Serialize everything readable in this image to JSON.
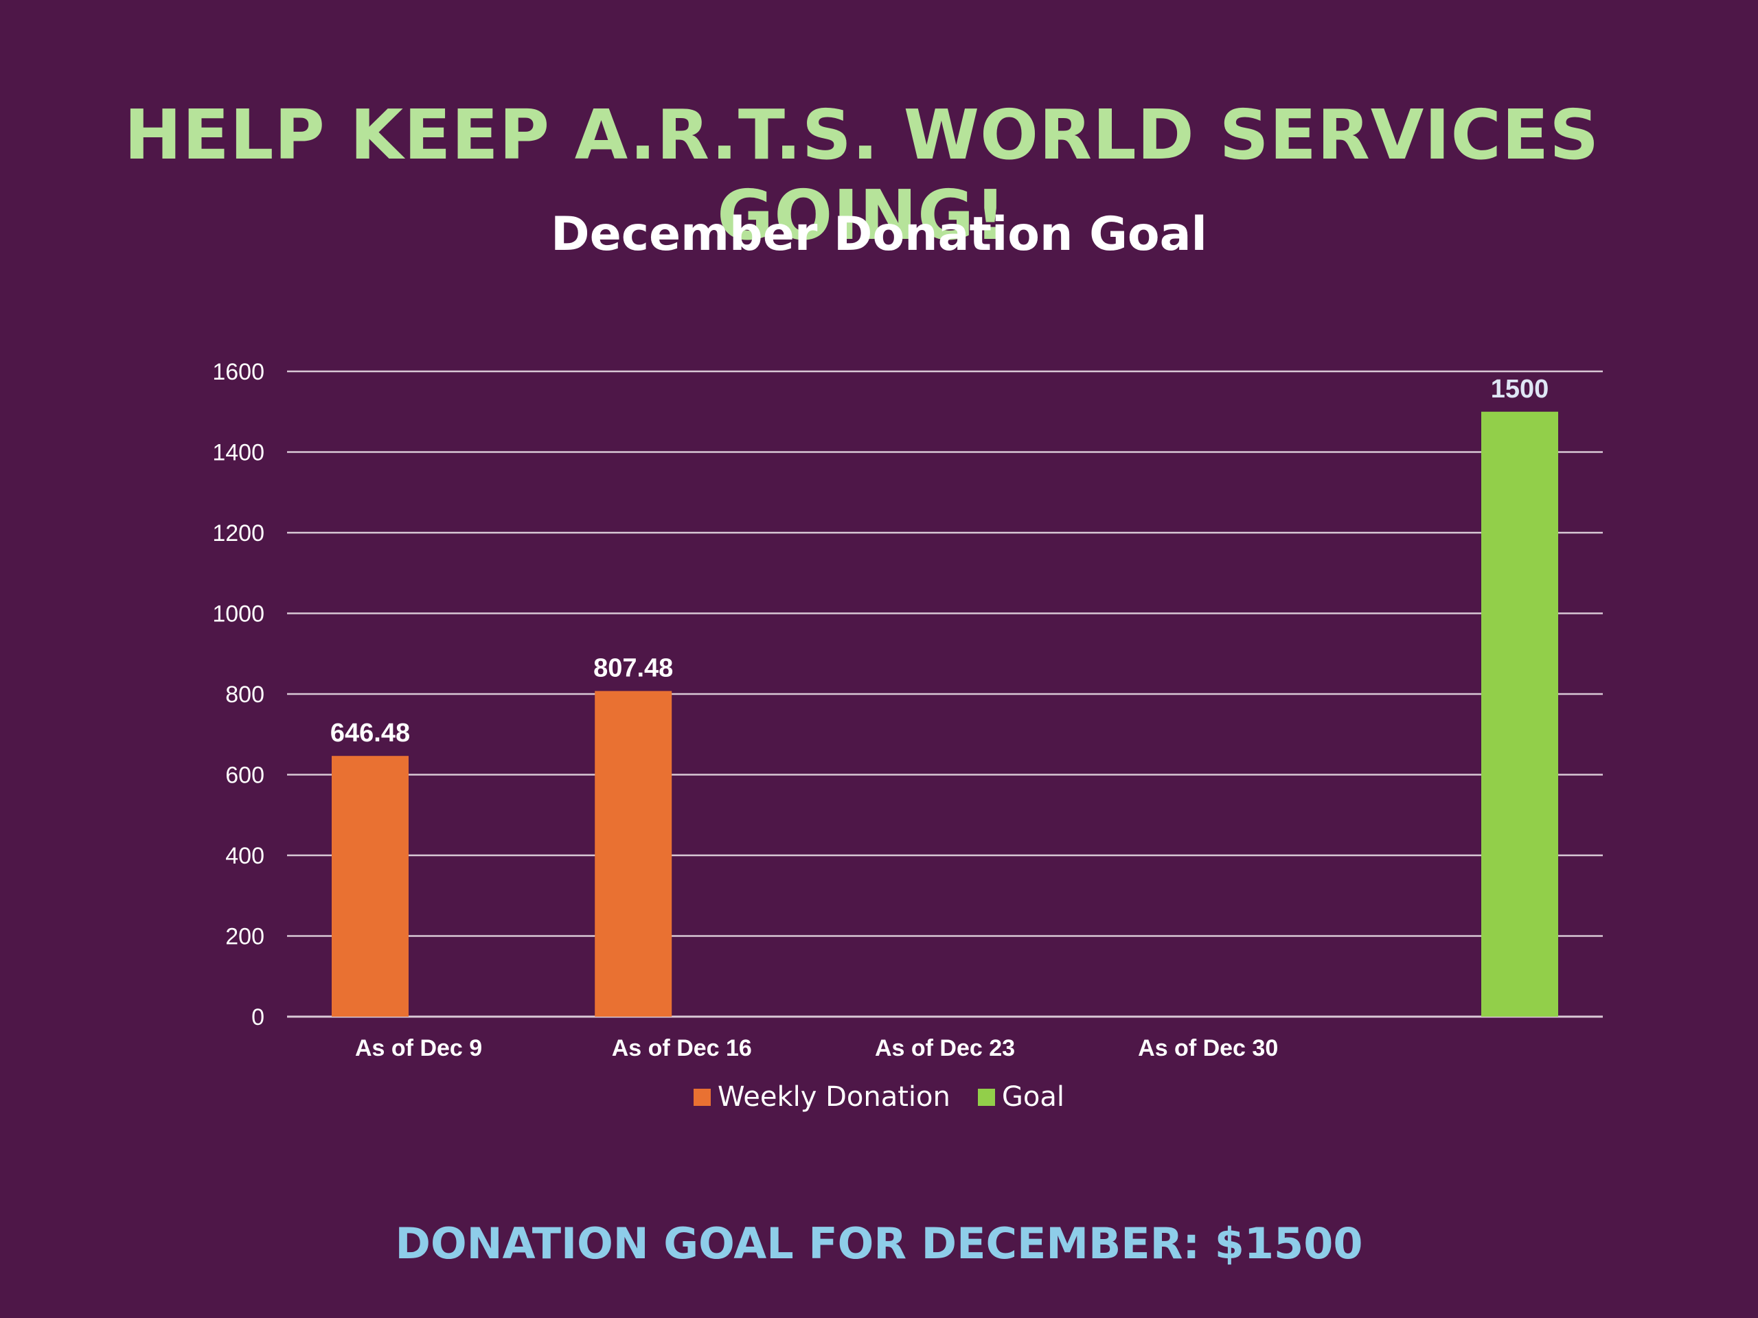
{
  "headline": "HELP KEEP A.R.T.S. WORLD SERVICES GOING!",
  "footer": "DONATION GOAL FOR DECEMBER: $1500",
  "colors": {
    "background": "#4e1748",
    "headline": "#b6e39a",
    "footer": "#8ecde9",
    "gridline": "#d9c9d6"
  },
  "chart_data": {
    "type": "bar",
    "title": "December Donation Goal",
    "categories": [
      "As of Dec 9",
      "As of Dec 16",
      "As of Dec 23",
      "As of Dec 30",
      ""
    ],
    "series": [
      {
        "name": "Weekly Donation",
        "color": "#e97132",
        "values": [
          646.48,
          807.48,
          null,
          null,
          null
        ],
        "labels": [
          "646.48",
          "807.48",
          null,
          null,
          null
        ]
      },
      {
        "name": "Goal",
        "color": "#92cf4a",
        "values": [
          null,
          null,
          null,
          null,
          1500
        ],
        "labels": [
          null,
          null,
          null,
          null,
          "1500"
        ]
      }
    ],
    "yticks": [
      "0",
      "200",
      "400",
      "600",
      "800",
      "1000",
      "1200",
      "1400",
      "1600"
    ],
    "ylim": [
      0,
      1600
    ],
    "grid": true,
    "legend": "bottom",
    "xlabel": "",
    "ylabel": ""
  }
}
